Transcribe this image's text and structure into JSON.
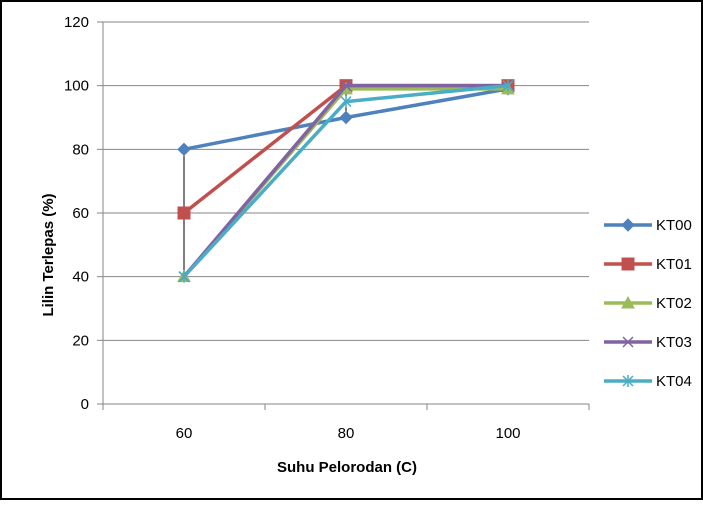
{
  "chart_data": {
    "type": "line",
    "title": "",
    "xlabel": "Suhu Pelorodan (C)",
    "ylabel": "Lilin Terlepas (%)",
    "categories": [
      "60",
      "80",
      "100"
    ],
    "ylim": [
      0,
      120
    ],
    "yticks": [
      "0",
      "20",
      "40",
      "60",
      "80",
      "100",
      "120"
    ],
    "grid": true,
    "legend_position": "right",
    "drop_lines": true,
    "series": [
      {
        "name": "KT00",
        "values": [
          80,
          90,
          99
        ],
        "color": "#4f81bd",
        "marker": "diamond"
      },
      {
        "name": "KT01",
        "values": [
          60,
          100,
          100
        ],
        "color": "#c0504d",
        "marker": "square"
      },
      {
        "name": "KT02",
        "values": [
          40,
          99,
          99
        ],
        "color": "#9bbb59",
        "marker": "triangle"
      },
      {
        "name": "KT03",
        "values": [
          40,
          100,
          100
        ],
        "color": "#8064a2",
        "marker": "x"
      },
      {
        "name": "KT04",
        "values": [
          40,
          95,
          100
        ],
        "color": "#4bacc6",
        "marker": "star"
      }
    ]
  }
}
